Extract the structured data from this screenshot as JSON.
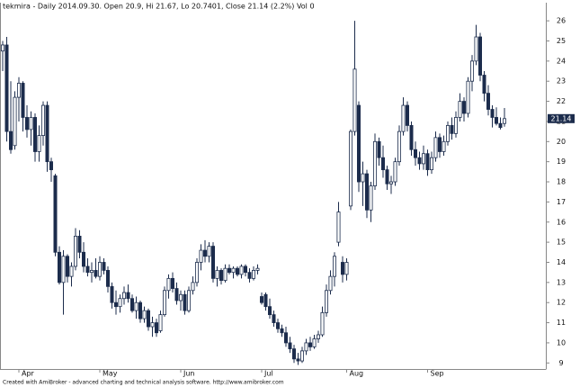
{
  "chart_data": {
    "type": "candlestick",
    "title": "tekmira - Daily 2014.09.30. Open 20.9, Hi 21.67, Lo 20.7401, Close 21.14 (2.2%) Vol 0",
    "footer": "Created with AmiBroker - advanced charting and technical analysis software. http://www.amibroker.com",
    "up_color": "#ffffff",
    "down_color": "#1c2c4c",
    "outline_color": "#1c2c4c",
    "ylim": [
      8.7,
      26.9
    ],
    "yticks": [
      9,
      10,
      11,
      12,
      13,
      14,
      15,
      16,
      17,
      18,
      19,
      20,
      21,
      22,
      23,
      24,
      25,
      26
    ],
    "categories": [
      null,
      null,
      null,
      null,
      "Apr",
      null,
      null,
      null,
      null,
      null,
      null,
      null,
      null,
      null,
      null,
      null,
      null,
      null,
      null,
      null,
      null,
      null,
      null,
      null,
      "May",
      null,
      null,
      null,
      null,
      null,
      null,
      null,
      null,
      null,
      null,
      null,
      null,
      null,
      null,
      null,
      null,
      null,
      null,
      null,
      "Jun",
      null,
      null,
      null,
      null,
      null,
      null,
      null,
      null,
      null,
      null,
      null,
      null,
      null,
      null,
      null,
      null,
      null,
      null,
      null,
      "Jul",
      null,
      null,
      null,
      null,
      null,
      null,
      null,
      null,
      null,
      null,
      null,
      null,
      null,
      null,
      null,
      null,
      null,
      null,
      null,
      null,
      "Aug",
      null,
      null,
      null,
      null,
      null,
      null,
      null,
      null,
      null,
      null,
      null,
      null,
      null,
      null,
      null,
      null,
      null,
      null,
      null,
      "Sep",
      null,
      null,
      null,
      null,
      null,
      null,
      null,
      null,
      null,
      null,
      null,
      null,
      null,
      null,
      null,
      null,
      null,
      null,
      null
    ],
    "ohlc": [
      [
        24.5,
        25.0,
        23.5,
        24.8
      ],
      [
        24.8,
        25.2,
        20.0,
        20.5
      ],
      [
        20.5,
        23.0,
        19.4,
        19.6
      ],
      [
        19.8,
        22.5,
        19.6,
        22.2
      ],
      [
        22.2,
        23.2,
        21.0,
        22.9
      ],
      [
        22.9,
        23.0,
        20.5,
        21.2
      ],
      [
        21.2,
        21.8,
        20.2,
        20.6
      ],
      [
        20.6,
        21.5,
        19.8,
        21.2
      ],
      [
        21.2,
        21.4,
        19.0,
        19.5
      ],
      [
        19.5,
        20.8,
        19.0,
        20.3
      ],
      [
        20.3,
        22.0,
        19.8,
        21.8
      ],
      [
        21.8,
        22.0,
        18.5,
        19.0
      ],
      [
        19.0,
        19.2,
        18.0,
        18.6
      ],
      [
        18.3,
        18.4,
        14.3,
        14.5
      ],
      [
        14.5,
        14.8,
        12.9,
        13.0
      ],
      [
        13.0,
        14.6,
        11.4,
        14.3
      ],
      [
        14.3,
        14.4,
        13.0,
        13.3
      ],
      [
        13.3,
        14.0,
        12.8,
        13.8
      ],
      [
        13.8,
        15.7,
        13.6,
        15.3
      ],
      [
        15.3,
        15.6,
        14.2,
        14.5
      ],
      [
        14.5,
        15.0,
        13.5,
        13.8
      ],
      [
        13.8,
        14.2,
        13.3,
        13.5
      ],
      [
        13.5,
        14.0,
        13.0,
        13.6
      ],
      [
        13.6,
        14.2,
        13.2,
        13.3
      ],
      [
        13.3,
        14.3,
        13.1,
        14.0
      ],
      [
        14.0,
        14.2,
        13.4,
        13.6
      ],
      [
        13.6,
        13.8,
        12.5,
        12.8
      ],
      [
        12.8,
        13.0,
        11.7,
        12.0
      ],
      [
        12.0,
        12.6,
        11.4,
        11.8
      ],
      [
        11.8,
        12.4,
        11.5,
        12.2
      ],
      [
        12.2,
        12.8,
        11.9,
        12.5
      ],
      [
        12.5,
        12.9,
        12.0,
        12.2
      ],
      [
        12.2,
        12.4,
        11.5,
        11.6
      ],
      [
        11.6,
        12.3,
        11.2,
        12.0
      ],
      [
        12.0,
        12.1,
        11.0,
        11.2
      ],
      [
        11.2,
        11.8,
        11.0,
        11.6
      ],
      [
        11.6,
        11.7,
        10.6,
        10.8
      ],
      [
        10.8,
        11.3,
        10.3,
        11.0
      ],
      [
        11.0,
        11.2,
        10.3,
        10.5
      ],
      [
        10.6,
        11.6,
        10.5,
        11.4
      ],
      [
        11.4,
        12.8,
        11.3,
        12.6
      ],
      [
        12.6,
        13.4,
        12.2,
        13.2
      ],
      [
        13.2,
        13.5,
        12.5,
        12.7
      ],
      [
        12.7,
        13.0,
        11.9,
        12.1
      ],
      [
        12.1,
        12.6,
        11.6,
        12.4
      ],
      [
        12.4,
        12.6,
        11.4,
        11.6
      ],
      [
        11.6,
        12.8,
        11.5,
        12.6
      ],
      [
        12.6,
        13.3,
        12.4,
        13.0
      ],
      [
        13.0,
        14.2,
        12.8,
        14.0
      ],
      [
        14.0,
        14.9,
        13.6,
        14.6
      ],
      [
        14.6,
        15.1,
        14.0,
        14.3
      ],
      [
        14.3,
        15.0,
        14.0,
        14.8
      ],
      [
        14.8,
        15.0,
        13.0,
        13.2
      ],
      [
        13.2,
        13.8,
        12.8,
        13.6
      ],
      [
        13.6,
        13.7,
        12.9,
        13.1
      ],
      [
        13.1,
        13.9,
        13.0,
        13.7
      ],
      [
        13.7,
        13.9,
        13.4,
        13.5
      ],
      [
        13.5,
        13.8,
        13.2,
        13.7
      ],
      [
        13.7,
        13.8,
        13.3,
        13.4
      ],
      [
        13.4,
        13.9,
        13.2,
        13.8
      ],
      [
        13.8,
        13.9,
        13.3,
        13.5
      ],
      [
        13.5,
        13.7,
        13.0,
        13.2
      ],
      [
        13.2,
        13.8,
        13.1,
        13.6
      ],
      [
        13.6,
        13.9,
        13.4,
        13.7
      ],
      [
        12.3,
        12.5,
        11.9,
        12.0
      ],
      [
        12.4,
        12.5,
        11.6,
        11.8
      ],
      [
        11.8,
        12.2,
        11.2,
        11.4
      ],
      [
        11.4,
        11.6,
        10.8,
        11.0
      ],
      [
        11.0,
        11.2,
        10.5,
        10.7
      ],
      [
        10.7,
        10.9,
        10.3,
        10.5
      ],
      [
        10.5,
        10.8,
        9.8,
        10.0
      ],
      [
        10.0,
        10.3,
        9.5,
        9.7
      ],
      [
        9.7,
        9.9,
        9.0,
        9.2
      ],
      [
        9.2,
        9.5,
        8.9,
        9.1
      ],
      [
        9.1,
        9.8,
        9.0,
        9.6
      ],
      [
        9.6,
        10.2,
        9.4,
        10.0
      ],
      [
        10.0,
        10.3,
        9.6,
        9.8
      ],
      [
        9.8,
        10.4,
        9.7,
        10.2
      ],
      [
        10.2,
        10.6,
        10.0,
        10.4
      ],
      [
        10.4,
        11.8,
        10.3,
        11.5
      ],
      [
        11.5,
        12.9,
        11.3,
        12.6
      ],
      [
        12.6,
        13.6,
        12.4,
        13.3
      ],
      [
        13.3,
        14.5,
        12.8,
        14.3
      ],
      [
        15.0,
        17.0,
        14.8,
        16.5
      ],
      [
        14.0,
        14.3,
        13.0,
        13.4
      ],
      [
        13.4,
        14.2,
        13.1,
        14.0
      ],
      [
        16.8,
        20.6,
        16.6,
        20.5
      ],
      [
        20.5,
        26.0,
        20.3,
        23.6
      ],
      [
        21.8,
        22.0,
        17.5,
        18.0
      ],
      [
        18.0,
        19.0,
        16.8,
        18.4
      ],
      [
        18.4,
        18.6,
        16.2,
        16.6
      ],
      [
        16.6,
        18.0,
        16.0,
        17.8
      ],
      [
        17.8,
        20.4,
        17.6,
        20.0
      ],
      [
        20.0,
        20.2,
        18.8,
        19.2
      ],
      [
        19.2,
        19.8,
        18.2,
        18.6
      ],
      [
        18.6,
        18.8,
        17.6,
        17.9
      ],
      [
        17.9,
        18.3,
        17.4,
        18.0
      ],
      [
        18.0,
        19.2,
        17.8,
        19.0
      ],
      [
        19.0,
        20.8,
        18.8,
        20.5
      ],
      [
        20.5,
        22.2,
        20.3,
        21.8
      ],
      [
        21.8,
        22.0,
        20.5,
        20.8
      ],
      [
        20.8,
        21.0,
        19.3,
        19.6
      ],
      [
        19.6,
        20.0,
        18.8,
        19.2
      ],
      [
        19.2,
        19.5,
        18.6,
        18.9
      ],
      [
        18.9,
        19.8,
        18.6,
        19.4
      ],
      [
        19.4,
        19.6,
        18.3,
        18.6
      ],
      [
        18.6,
        19.5,
        18.4,
        19.2
      ],
      [
        19.2,
        20.5,
        19.0,
        20.2
      ],
      [
        20.2,
        20.4,
        19.2,
        19.5
      ],
      [
        19.5,
        20.3,
        19.3,
        20.0
      ],
      [
        20.0,
        21.0,
        19.8,
        20.8
      ],
      [
        20.8,
        21.2,
        20.1,
        20.4
      ],
      [
        20.4,
        21.5,
        20.2,
        21.2
      ],
      [
        21.2,
        22.4,
        21.0,
        22.0
      ],
      [
        22.0,
        22.2,
        21.0,
        21.4
      ],
      [
        21.4,
        23.2,
        21.2,
        23.0
      ],
      [
        23.0,
        24.3,
        22.5,
        24.0
      ],
      [
        24.0,
        25.8,
        23.8,
        25.2
      ],
      [
        25.2,
        25.4,
        23.0,
        23.3
      ],
      [
        23.3,
        23.5,
        22.0,
        22.4
      ],
      [
        22.4,
        22.8,
        21.3,
        21.6
      ],
      [
        21.6,
        21.8,
        20.7,
        21.2
      ],
      [
        21.2,
        21.7,
        20.8,
        20.9
      ],
      [
        20.9,
        21.2,
        20.6,
        20.7
      ],
      [
        20.9,
        21.67,
        20.7401,
        21.14
      ]
    ]
  }
}
